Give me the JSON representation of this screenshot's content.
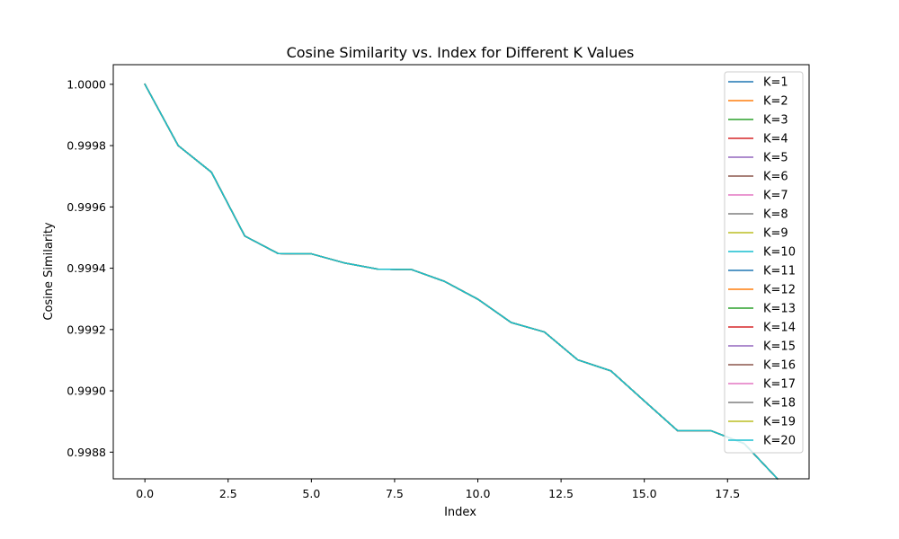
{
  "chart_data": {
    "type": "line",
    "title": "Cosine Similarity vs. Index for Different K Values",
    "xlabel": "Index",
    "ylabel": "Cosine Similarity",
    "xlim": [
      -0.95,
      19.95
    ],
    "ylim": [
      0.998713,
      1.000064
    ],
    "xticks": [
      0,
      2.5,
      5,
      7.5,
      10,
      12.5,
      15,
      17.5
    ],
    "xtick_labels": [
      "0.0",
      "2.5",
      "5.0",
      "7.5",
      "10.0",
      "12.5",
      "15.0",
      "17.5"
    ],
    "yticks": [
      0.9988,
      0.999,
      0.9992,
      0.9994,
      0.9996,
      0.9998,
      1.0
    ],
    "ytick_labels": [
      "0.9988",
      "0.9990",
      "0.9992",
      "0.9994",
      "0.9996",
      "0.9998",
      "1.0000"
    ],
    "grid": false,
    "legend_position": "top-right",
    "x": [
      0,
      1,
      2,
      3,
      4,
      5,
      6,
      7,
      8,
      9,
      10,
      11,
      12,
      13,
      14,
      15,
      16,
      17,
      18,
      19
    ],
    "series": [
      {
        "name": "K=1",
        "color": "#1f77b4",
        "values": [
          1.0,
          0.9998,
          0.999713,
          0.999505,
          0.999448,
          0.999447,
          0.999417,
          0.999397,
          0.999396,
          0.999357,
          0.999299,
          0.999223,
          0.999192,
          0.999101,
          0.999065,
          0.998967,
          0.99887,
          0.99887,
          0.998828,
          0.998713
        ]
      },
      {
        "name": "K=2",
        "color": "#ff7f0e",
        "values": [
          1.0,
          0.9998,
          0.999713,
          0.999505,
          0.999448,
          0.999447,
          0.999417,
          0.999397,
          0.999396,
          0.999357,
          0.999299,
          0.999223,
          0.999192,
          0.999101,
          0.999065,
          0.998967,
          0.99887,
          0.99887,
          0.998828,
          0.998713
        ]
      },
      {
        "name": "K=3",
        "color": "#2ca02c",
        "values": [
          1.0,
          0.9998,
          0.999713,
          0.999505,
          0.999448,
          0.999447,
          0.999417,
          0.999397,
          0.999396,
          0.999357,
          0.999299,
          0.999223,
          0.999192,
          0.999101,
          0.999065,
          0.998967,
          0.99887,
          0.99887,
          0.998828,
          0.998713
        ]
      },
      {
        "name": "K=4",
        "color": "#d62728",
        "values": [
          1.0,
          0.9998,
          0.999713,
          0.999505,
          0.999448,
          0.999447,
          0.999417,
          0.999397,
          0.999396,
          0.999357,
          0.999299,
          0.999223,
          0.999192,
          0.999101,
          0.999065,
          0.998967,
          0.99887,
          0.99887,
          0.998828,
          0.998713
        ]
      },
      {
        "name": "K=5",
        "color": "#9467bd",
        "values": [
          1.0,
          0.9998,
          0.999713,
          0.999505,
          0.999448,
          0.999447,
          0.999417,
          0.999397,
          0.999396,
          0.999357,
          0.999299,
          0.999223,
          0.999192,
          0.999101,
          0.999065,
          0.998967,
          0.99887,
          0.99887,
          0.998828,
          0.998713
        ]
      },
      {
        "name": "K=6",
        "color": "#8c564b",
        "values": [
          1.0,
          0.9998,
          0.999713,
          0.999505,
          0.999448,
          0.999447,
          0.999417,
          0.999397,
          0.999396,
          0.999357,
          0.999299,
          0.999223,
          0.999192,
          0.999101,
          0.999065,
          0.998967,
          0.99887,
          0.99887,
          0.998828,
          0.998713
        ]
      },
      {
        "name": "K=7",
        "color": "#e377c2",
        "values": [
          1.0,
          0.9998,
          0.999713,
          0.999505,
          0.999448,
          0.999447,
          0.999417,
          0.999397,
          0.999396,
          0.999357,
          0.999299,
          0.999223,
          0.999192,
          0.999101,
          0.999065,
          0.998967,
          0.99887,
          0.99887,
          0.998828,
          0.998713
        ]
      },
      {
        "name": "K=8",
        "color": "#7f7f7f",
        "values": [
          1.0,
          0.9998,
          0.999713,
          0.999505,
          0.999448,
          0.999447,
          0.999417,
          0.999397,
          0.999396,
          0.999357,
          0.999299,
          0.999223,
          0.999192,
          0.999101,
          0.999065,
          0.998967,
          0.99887,
          0.99887,
          0.998828,
          0.998713
        ]
      },
      {
        "name": "K=9",
        "color": "#bcbd22",
        "values": [
          1.0,
          0.9998,
          0.999713,
          0.999505,
          0.999448,
          0.999447,
          0.999417,
          0.999397,
          0.999396,
          0.999357,
          0.999299,
          0.999223,
          0.999192,
          0.999101,
          0.999065,
          0.998967,
          0.99887,
          0.99887,
          0.998828,
          0.998713
        ]
      },
      {
        "name": "K=10",
        "color": "#17becf",
        "values": [
          1.0,
          0.9998,
          0.999713,
          0.999505,
          0.999448,
          0.999447,
          0.999417,
          0.999397,
          0.999396,
          0.999357,
          0.999299,
          0.999223,
          0.999192,
          0.999101,
          0.999065,
          0.998967,
          0.99887,
          0.99887,
          0.998828,
          0.998713
        ]
      },
      {
        "name": "K=11",
        "color": "#1f77b4",
        "values": [
          1.0,
          0.9998,
          0.999713,
          0.999505,
          0.999448,
          0.999447,
          0.999417,
          0.999397,
          0.999396,
          0.999357,
          0.999299,
          0.999223,
          0.999192,
          0.999101,
          0.999065,
          0.998967,
          0.99887,
          0.99887,
          0.998828,
          0.998713
        ]
      },
      {
        "name": "K=12",
        "color": "#ff7f0e",
        "values": [
          1.0,
          0.9998,
          0.999713,
          0.999505,
          0.999448,
          0.999447,
          0.999417,
          0.999397,
          0.999396,
          0.999357,
          0.999299,
          0.999223,
          0.999192,
          0.999101,
          0.999065,
          0.998967,
          0.99887,
          0.99887,
          0.998828,
          0.998713
        ]
      },
      {
        "name": "K=13",
        "color": "#2ca02c",
        "values": [
          1.0,
          0.9998,
          0.999713,
          0.999505,
          0.999448,
          0.999447,
          0.999417,
          0.999397,
          0.999396,
          0.999357,
          0.999299,
          0.999223,
          0.999192,
          0.999101,
          0.999065,
          0.998967,
          0.99887,
          0.99887,
          0.998828,
          0.998713
        ]
      },
      {
        "name": "K=14",
        "color": "#d62728",
        "values": [
          1.0,
          0.9998,
          0.999713,
          0.999505,
          0.999448,
          0.999447,
          0.999417,
          0.999397,
          0.999396,
          0.999357,
          0.999299,
          0.999223,
          0.999192,
          0.999101,
          0.999065,
          0.998967,
          0.99887,
          0.99887,
          0.998828,
          0.998713
        ]
      },
      {
        "name": "K=15",
        "color": "#9467bd",
        "values": [
          1.0,
          0.9998,
          0.999713,
          0.999505,
          0.999448,
          0.999447,
          0.999417,
          0.999397,
          0.999396,
          0.999357,
          0.999299,
          0.999223,
          0.999192,
          0.999101,
          0.999065,
          0.998967,
          0.99887,
          0.99887,
          0.998828,
          0.998713
        ]
      },
      {
        "name": "K=16",
        "color": "#8c564b",
        "values": [
          1.0,
          0.9998,
          0.999713,
          0.999505,
          0.999448,
          0.999447,
          0.999417,
          0.999397,
          0.999396,
          0.999357,
          0.999299,
          0.999223,
          0.999192,
          0.999101,
          0.999065,
          0.998967,
          0.99887,
          0.99887,
          0.998828,
          0.998713
        ]
      },
      {
        "name": "K=17",
        "color": "#e377c2",
        "values": [
          1.0,
          0.9998,
          0.999713,
          0.999505,
          0.999448,
          0.999447,
          0.999417,
          0.999397,
          0.999396,
          0.999357,
          0.999299,
          0.999223,
          0.999192,
          0.999101,
          0.999065,
          0.998967,
          0.99887,
          0.99887,
          0.998828,
          0.998713
        ]
      },
      {
        "name": "K=18",
        "color": "#7f7f7f",
        "values": [
          1.0,
          0.9998,
          0.999713,
          0.999505,
          0.999448,
          0.999447,
          0.999417,
          0.999397,
          0.999396,
          0.999357,
          0.999299,
          0.999223,
          0.999192,
          0.999101,
          0.999065,
          0.998967,
          0.99887,
          0.99887,
          0.998828,
          0.998713
        ]
      },
      {
        "name": "K=19",
        "color": "#bcbd22",
        "values": [
          1.0,
          0.9998,
          0.999713,
          0.999505,
          0.999448,
          0.999447,
          0.999417,
          0.999397,
          0.999396,
          0.999357,
          0.999299,
          0.999223,
          0.999192,
          0.999101,
          0.999065,
          0.998967,
          0.99887,
          0.99887,
          0.998828,
          0.998713
        ]
      },
      {
        "name": "K=20",
        "color": "#17becf",
        "values": [
          1.0,
          0.9998,
          0.999713,
          0.999505,
          0.999448,
          0.999447,
          0.999417,
          0.999397,
          0.999396,
          0.999357,
          0.999299,
          0.999223,
          0.999192,
          0.999101,
          0.999065,
          0.998967,
          0.99887,
          0.99887,
          0.998828,
          0.998713
        ]
      }
    ]
  }
}
